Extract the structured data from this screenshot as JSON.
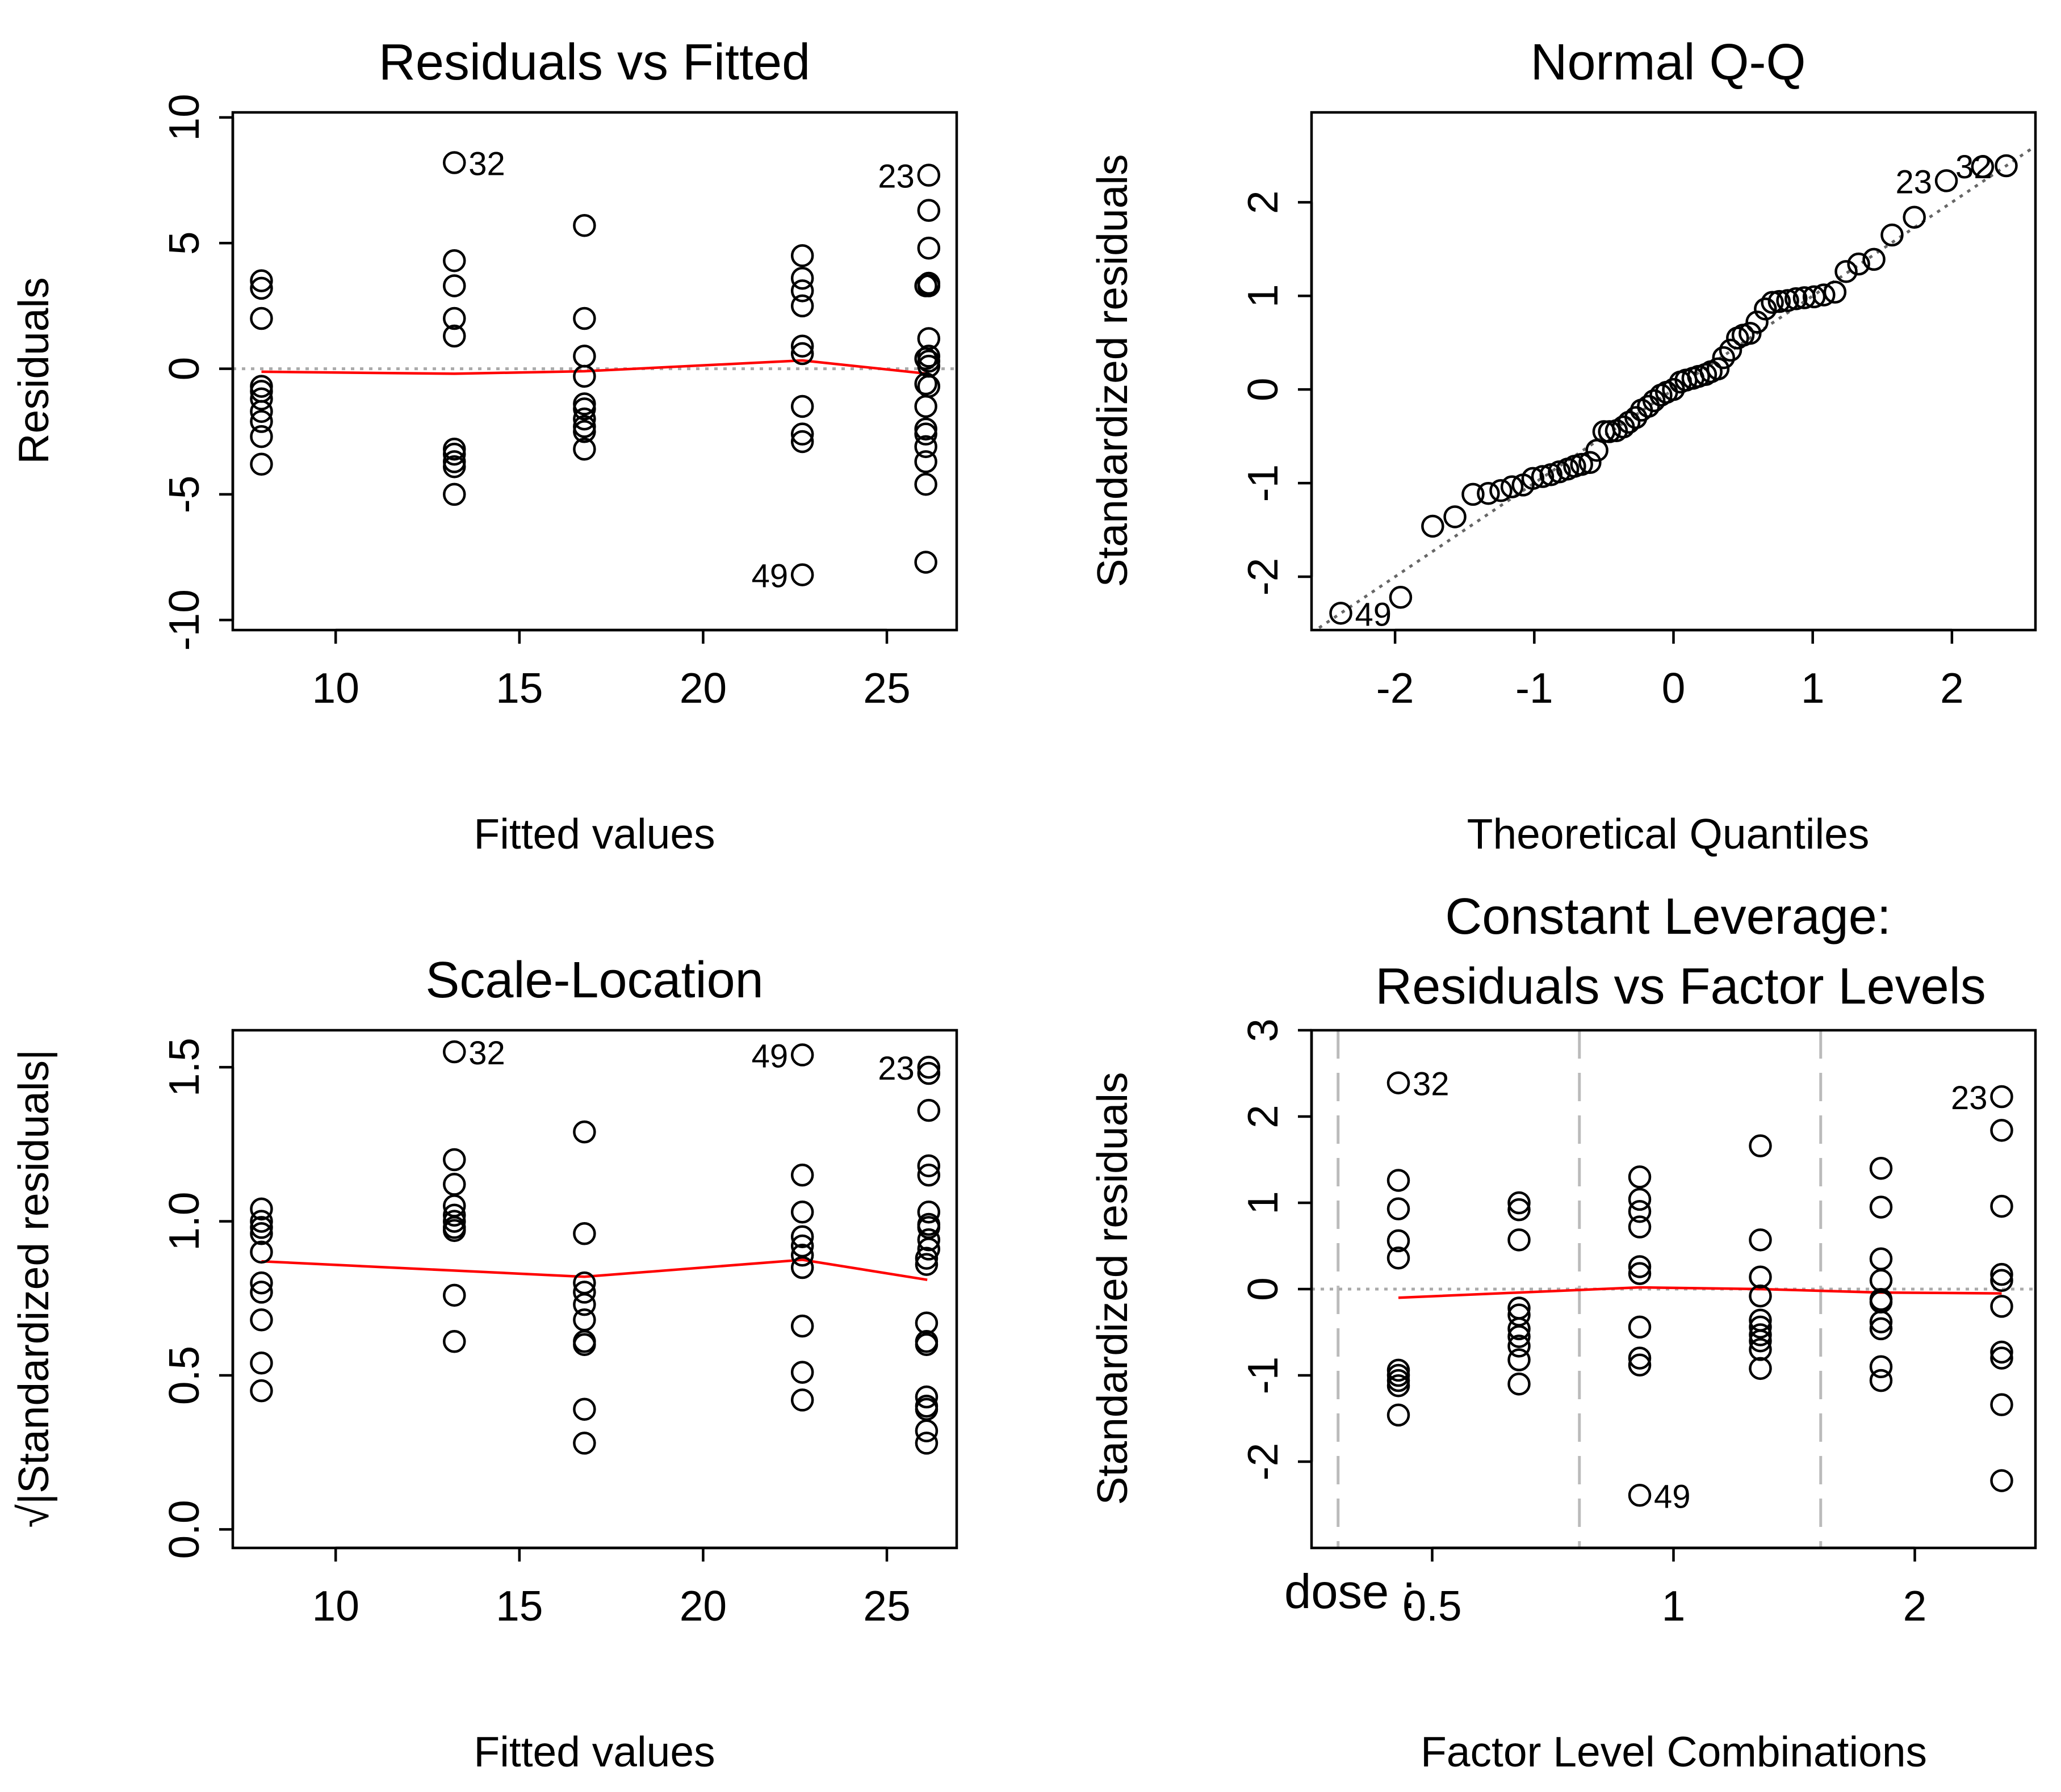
{
  "chart_data": [
    {
      "id": "rvf",
      "type": "scatter",
      "title": "Residuals vs Fitted",
      "xlabel": "Fitted values",
      "ylabel": "Residuals",
      "xlim": [
        7.2,
        26.9
      ],
      "ylim": [
        -10.4,
        10.2
      ],
      "xticks": [
        10,
        15,
        20,
        25
      ],
      "yticks": [
        -10,
        -5,
        0,
        5,
        10
      ],
      "reference_line": {
        "y": 0,
        "style": "dotted",
        "color": "#aaaaaa"
      },
      "points": [
        [
          7.98,
          3.5
        ],
        [
          7.98,
          3.2
        ],
        [
          7.98,
          2.0
        ],
        [
          7.98,
          -0.7
        ],
        [
          7.98,
          -0.9
        ],
        [
          7.98,
          -1.2
        ],
        [
          7.98,
          -1.7
        ],
        [
          7.98,
          -2.1
        ],
        [
          7.98,
          -2.7
        ],
        [
          7.98,
          -3.8
        ],
        [
          13.23,
          8.2
        ],
        [
          13.23,
          4.3
        ],
        [
          13.23,
          3.3
        ],
        [
          13.23,
          2.0
        ],
        [
          13.23,
          1.3
        ],
        [
          13.23,
          -3.2
        ],
        [
          13.23,
          -3.4
        ],
        [
          13.23,
          -3.7
        ],
        [
          13.23,
          -3.9
        ],
        [
          13.23,
          -5.0
        ],
        [
          16.77,
          5.7
        ],
        [
          16.77,
          2.0
        ],
        [
          16.77,
          0.5
        ],
        [
          16.77,
          -0.3
        ],
        [
          16.77,
          -1.4
        ],
        [
          16.77,
          -1.6
        ],
        [
          16.77,
          -2.0
        ],
        [
          16.77,
          -2.3
        ],
        [
          16.77,
          -2.5
        ],
        [
          16.77,
          -3.2
        ],
        [
          22.7,
          4.5
        ],
        [
          22.7,
          3.6
        ],
        [
          22.7,
          3.1
        ],
        [
          22.7,
          2.5
        ],
        [
          22.7,
          0.9
        ],
        [
          22.7,
          0.6
        ],
        [
          22.7,
          -1.5
        ],
        [
          22.7,
          -2.6
        ],
        [
          22.7,
          -2.9
        ],
        [
          22.7,
          -8.2
        ],
        [
          26.14,
          7.7
        ],
        [
          26.14,
          6.3
        ],
        [
          26.14,
          4.8
        ],
        [
          26.14,
          3.4
        ],
        [
          26.14,
          3.3
        ],
        [
          26.14,
          1.2
        ],
        [
          26.14,
          0.5
        ],
        [
          26.14,
          0.3
        ],
        [
          26.14,
          0.1
        ],
        [
          26.14,
          -0.7
        ],
        [
          26.06,
          3.3
        ],
        [
          26.06,
          0.4
        ],
        [
          26.06,
          -0.6
        ],
        [
          26.06,
          -1.5
        ],
        [
          26.06,
          -2.4
        ],
        [
          26.06,
          -2.6
        ],
        [
          26.06,
          -3.1
        ],
        [
          26.06,
          -3.7
        ],
        [
          26.06,
          -4.6
        ],
        [
          26.06,
          -7.7
        ]
      ],
      "smoother": [
        [
          7.98,
          -0.12
        ],
        [
          13.23,
          -0.2
        ],
        [
          16.77,
          -0.1
        ],
        [
          22.7,
          0.33
        ],
        [
          26.1,
          -0.2
        ]
      ],
      "point_labels": [
        {
          "text": "32",
          "x": 13.23,
          "y": 8.2,
          "side": "right"
        },
        {
          "text": "23",
          "x": 26.14,
          "y": 7.7,
          "side": "left"
        },
        {
          "text": "49",
          "x": 22.7,
          "y": -8.2,
          "side": "left"
        }
      ]
    },
    {
      "id": "qq",
      "type": "scatter",
      "title": "Normal Q-Q",
      "xlabel": "Theoretical Quantiles",
      "ylabel": "Standardized residuals",
      "xlim": [
        -2.6,
        2.6
      ],
      "ylim": [
        -2.57,
        2.96
      ],
      "xticks": [
        -2,
        -1,
        0,
        1,
        2
      ],
      "yticks": [
        -2,
        -1,
        0,
        1,
        2
      ],
      "reference_line": {
        "slope": 1,
        "intercept": 0,
        "style": "dotted",
        "color": "#666666"
      },
      "points": [
        [
          -2.39,
          -2.39
        ],
        [
          -1.96,
          -2.22
        ],
        [
          -1.73,
          -1.46
        ],
        [
          -1.57,
          -1.36
        ],
        [
          -1.44,
          -1.12
        ],
        [
          -1.33,
          -1.11
        ],
        [
          -1.24,
          -1.08
        ],
        [
          -1.16,
          -1.04
        ],
        [
          -1.08,
          -1.02
        ],
        [
          -1.01,
          -0.95
        ],
        [
          -0.94,
          -0.93
        ],
        [
          -0.88,
          -0.91
        ],
        [
          -0.82,
          -0.88
        ],
        [
          -0.76,
          -0.85
        ],
        [
          -0.71,
          -0.82
        ],
        [
          -0.66,
          -0.8
        ],
        [
          -0.6,
          -0.78
        ],
        [
          -0.55,
          -0.65
        ],
        [
          -0.5,
          -0.45
        ],
        [
          -0.46,
          -0.45
        ],
        [
          -0.41,
          -0.44
        ],
        [
          -0.36,
          -0.4
        ],
        [
          -0.32,
          -0.35
        ],
        [
          -0.27,
          -0.3
        ],
        [
          -0.23,
          -0.22
        ],
        [
          -0.18,
          -0.18
        ],
        [
          -0.14,
          -0.12
        ],
        [
          -0.09,
          -0.06
        ],
        [
          -0.05,
          -0.03
        ],
        [
          0.0,
          0.0
        ],
        [
          0.05,
          0.08
        ],
        [
          0.09,
          0.1
        ],
        [
          0.14,
          0.12
        ],
        [
          0.18,
          0.14
        ],
        [
          0.23,
          0.16
        ],
        [
          0.27,
          0.19
        ],
        [
          0.32,
          0.22
        ],
        [
          0.36,
          0.34
        ],
        [
          0.41,
          0.42
        ],
        [
          0.46,
          0.55
        ],
        [
          0.5,
          0.58
        ],
        [
          0.55,
          0.6
        ],
        [
          0.6,
          0.72
        ],
        [
          0.66,
          0.86
        ],
        [
          0.71,
          0.93
        ],
        [
          0.76,
          0.94
        ],
        [
          0.82,
          0.95
        ],
        [
          0.88,
          0.97
        ],
        [
          0.94,
          0.98
        ],
        [
          1.01,
          0.99
        ],
        [
          1.08,
          1.01
        ],
        [
          1.16,
          1.04
        ],
        [
          1.24,
          1.26
        ],
        [
          1.33,
          1.34
        ],
        [
          1.44,
          1.39
        ],
        [
          1.57,
          1.65
        ],
        [
          1.73,
          1.84
        ],
        [
          1.96,
          2.23
        ],
        [
          2.39,
          2.39
        ],
        [
          2.22,
          2.38
        ]
      ],
      "point_labels": [
        {
          "text": "49",
          "x": -2.39,
          "y": -2.39,
          "side": "right"
        },
        {
          "text": "23",
          "x": 1.96,
          "y": 2.23,
          "side": "left"
        },
        {
          "text": "32",
          "x": 2.39,
          "y": 2.39,
          "side": "left"
        }
      ]
    },
    {
      "id": "sl",
      "type": "scatter",
      "title": "Scale-Location",
      "xlabel": "Fitted values",
      "ylabel": "√|Standardized residuals|",
      "xlim": [
        7.2,
        26.9
      ],
      "ylim": [
        -0.06,
        1.62
      ],
      "xticks": [
        10,
        15,
        20,
        25
      ],
      "yticks": [
        0.0,
        0.5,
        1.0,
        1.5
      ],
      "ytick_labels": [
        "0.0",
        "0.5",
        "1.0",
        "1.5"
      ],
      "points": [
        [
          7.98,
          1.04
        ],
        [
          7.98,
          1.0
        ],
        [
          7.98,
          0.96
        ],
        [
          7.98,
          0.9
        ],
        [
          7.98,
          0.8
        ],
        [
          7.98,
          0.77
        ],
        [
          7.98,
          0.68
        ],
        [
          7.98,
          0.54
        ],
        [
          7.98,
          0.45
        ],
        [
          7.98,
          0.98
        ],
        [
          13.23,
          1.55
        ],
        [
          13.23,
          1.2
        ],
        [
          13.23,
          1.12
        ],
        [
          13.23,
          1.05
        ],
        [
          13.23,
          1.0
        ],
        [
          13.23,
          0.97
        ],
        [
          13.23,
          0.76
        ],
        [
          13.23,
          0.61
        ],
        [
          13.23,
          0.98
        ],
        [
          13.23,
          1.02
        ],
        [
          16.77,
          1.29
        ],
        [
          16.77,
          0.96
        ],
        [
          16.77,
          0.8
        ],
        [
          16.77,
          0.77
        ],
        [
          16.77,
          0.73
        ],
        [
          16.77,
          0.68
        ],
        [
          16.77,
          0.61
        ],
        [
          16.77,
          0.39
        ],
        [
          16.77,
          0.28
        ],
        [
          16.77,
          0.6
        ],
        [
          22.7,
          1.54
        ],
        [
          22.7,
          1.15
        ],
        [
          22.7,
          1.03
        ],
        [
          22.7,
          0.95
        ],
        [
          22.7,
          0.92
        ],
        [
          22.7,
          0.89
        ],
        [
          22.7,
          0.85
        ],
        [
          22.7,
          0.66
        ],
        [
          22.7,
          0.51
        ],
        [
          22.7,
          0.42
        ],
        [
          26.14,
          1.5
        ],
        [
          26.14,
          1.48
        ],
        [
          26.14,
          1.36
        ],
        [
          26.14,
          1.18
        ],
        [
          26.14,
          1.15
        ],
        [
          26.14,
          1.03
        ],
        [
          26.14,
          0.99
        ],
        [
          26.14,
          0.98
        ],
        [
          26.14,
          0.94
        ],
        [
          26.14,
          0.91
        ],
        [
          26.08,
          0.88
        ],
        [
          26.08,
          0.86
        ],
        [
          26.08,
          0.67
        ],
        [
          26.08,
          0.61
        ],
        [
          26.08,
          0.6
        ],
        [
          26.08,
          0.43
        ],
        [
          26.08,
          0.4
        ],
        [
          26.08,
          0.39
        ],
        [
          26.08,
          0.32
        ],
        [
          26.08,
          0.28
        ]
      ],
      "smoother": [
        [
          7.98,
          0.87
        ],
        [
          13.23,
          0.84
        ],
        [
          16.77,
          0.82
        ],
        [
          22.7,
          0.875
        ],
        [
          26.1,
          0.81
        ]
      ],
      "point_labels": [
        {
          "text": "32",
          "x": 13.23,
          "y": 1.55,
          "side": "right"
        },
        {
          "text": "49",
          "x": 22.7,
          "y": 1.54,
          "side": "left"
        },
        {
          "text": "23",
          "x": 26.14,
          "y": 1.5,
          "side": "left"
        }
      ]
    },
    {
      "id": "lev",
      "type": "scatter",
      "title": [
        "Constant Leverage:",
        "Residuals vs Factor Levels"
      ],
      "xlabel": "Factor Level Combinations",
      "ylabel": "Standardized residuals",
      "factor_name": "dose :",
      "xlim": [
        0.5,
        6.5
      ],
      "ylim": [
        -3.0,
        3.0
      ],
      "xtick_positions": [
        1.5,
        3.5,
        5.5
      ],
      "xtick_labels": [
        "0.5",
        "1",
        "2"
      ],
      "yticks": [
        -2,
        -1,
        0,
        1,
        2,
        3
      ],
      "separators": [
        0.72,
        2.72,
        4.72,
        6.72
      ],
      "reference_line": {
        "y": 0,
        "style": "dotted",
        "color": "#aaaaaa"
      },
      "points": [
        [
          1.22,
          2.39
        ],
        [
          1.22,
          1.26
        ],
        [
          1.22,
          0.93
        ],
        [
          1.22,
          0.56
        ],
        [
          1.22,
          0.36
        ],
        [
          1.22,
          -0.94
        ],
        [
          1.22,
          -1.0
        ],
        [
          1.22,
          -1.06
        ],
        [
          1.22,
          -1.12
        ],
        [
          1.22,
          -1.46
        ],
        [
          2.22,
          1.0
        ],
        [
          2.22,
          0.92
        ],
        [
          2.22,
          0.57
        ],
        [
          2.22,
          -0.22
        ],
        [
          2.22,
          -0.3
        ],
        [
          2.22,
          -0.46
        ],
        [
          2.22,
          -0.55
        ],
        [
          2.22,
          -0.66
        ],
        [
          2.22,
          -0.82
        ],
        [
          2.22,
          -1.1
        ],
        [
          3.22,
          1.3
        ],
        [
          3.22,
          1.04
        ],
        [
          3.22,
          0.9
        ],
        [
          3.22,
          0.72
        ],
        [
          3.22,
          0.26
        ],
        [
          3.22,
          0.18
        ],
        [
          3.22,
          -0.44
        ],
        [
          3.22,
          -0.8
        ],
        [
          3.22,
          -0.88
        ],
        [
          3.22,
          -2.39
        ],
        [
          4.22,
          1.66
        ],
        [
          4.22,
          0.57
        ],
        [
          4.22,
          0.14
        ],
        [
          4.22,
          -0.08
        ],
        [
          4.22,
          -0.36
        ],
        [
          4.22,
          -0.44
        ],
        [
          4.22,
          -0.53
        ],
        [
          4.22,
          -0.7
        ],
        [
          4.22,
          -0.92
        ],
        [
          4.22,
          -0.6
        ],
        [
          5.22,
          1.4
        ],
        [
          5.22,
          0.95
        ],
        [
          5.22,
          0.35
        ],
        [
          5.22,
          0.1
        ],
        [
          5.22,
          -0.15
        ],
        [
          5.22,
          -0.38
        ],
        [
          5.22,
          -0.46
        ],
        [
          5.22,
          -0.9
        ],
        [
          5.22,
          -1.06
        ],
        [
          5.22,
          -0.12
        ],
        [
          6.22,
          2.23
        ],
        [
          6.22,
          1.84
        ],
        [
          6.22,
          0.96
        ],
        [
          6.22,
          0.17
        ],
        [
          6.22,
          0.1
        ],
        [
          6.22,
          -0.2
        ],
        [
          6.22,
          -0.73
        ],
        [
          6.22,
          -0.8
        ],
        [
          6.22,
          -1.34
        ],
        [
          6.22,
          -2.22
        ]
      ],
      "smoother": [
        [
          1.22,
          -0.1
        ],
        [
          2.22,
          -0.04
        ],
        [
          3.22,
          0.02
        ],
        [
          4.22,
          0.0
        ],
        [
          5.22,
          -0.04
        ],
        [
          6.22,
          -0.05
        ]
      ],
      "point_labels": [
        {
          "text": "32",
          "x": 1.22,
          "y": 2.39,
          "side": "right"
        },
        {
          "text": "49",
          "x": 3.22,
          "y": -2.39,
          "side": "right"
        },
        {
          "text": "23",
          "x": 6.22,
          "y": 2.23,
          "side": "left"
        }
      ]
    }
  ],
  "colors": {
    "points": "#000000",
    "axes": "#000000",
    "smoother": "#ff0000",
    "reference_gray": "#aaaaaa",
    "qq_line": "#666666",
    "separator": "#bbbbbb"
  }
}
